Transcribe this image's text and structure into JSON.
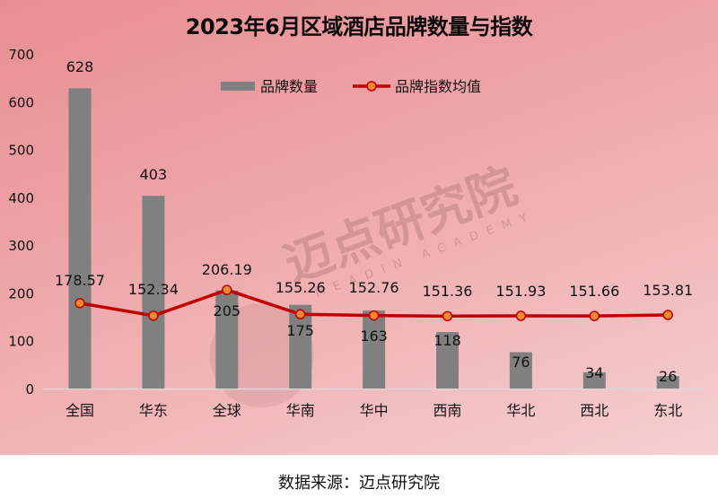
{
  "title": "2023年6月区域酒店品牌数量与指数",
  "footer": {
    "source": "数据来源：迈点研究院"
  },
  "watermark": {
    "text": "迈点研究院",
    "subtext": "MEADIN ACADEMY"
  },
  "legend": {
    "bar_label": "品牌数量",
    "line_label": "品牌指数均值"
  },
  "colors": {
    "bar": "#808080",
    "line": "#c00000",
    "marker_fill": "#f08a30",
    "marker_stroke": "#c00000",
    "axis_line": "#d9d9d9"
  },
  "axis": {
    "y_ticks": [
      "0",
      "100",
      "200",
      "300",
      "400",
      "500",
      "600",
      "700"
    ]
  },
  "chart_data": {
    "type": "bar+line",
    "title": "2023年6月区域酒店品牌数量与指数",
    "categories": [
      "全国",
      "华东",
      "全球",
      "华南",
      "华中",
      "西南",
      "华北",
      "西北",
      "东北"
    ],
    "series": [
      {
        "name": "品牌数量",
        "type": "bar",
        "values": [
          628,
          403,
          205,
          175,
          163,
          118,
          76,
          34,
          26
        ]
      },
      {
        "name": "品牌指数均值",
        "type": "line",
        "values": [
          178.57,
          152.34,
          206.19,
          155.26,
          152.76,
          151.36,
          151.93,
          151.66,
          153.81
        ]
      }
    ],
    "bar_labels": [
      "628",
      "403",
      "205",
      "175",
      "163",
      "118",
      "76",
      "34",
      "26"
    ],
    "line_labels": [
      "178.57",
      "152.34",
      "206.19",
      "155.26",
      "152.76",
      "151.36",
      "151.93",
      "151.66",
      "153.81"
    ],
    "xlabel": "",
    "ylabel": "",
    "ylim": [
      0,
      700
    ],
    "yticks": [
      0,
      100,
      200,
      300,
      400,
      500,
      600,
      700
    ],
    "grid": false,
    "legend_position": "top"
  }
}
